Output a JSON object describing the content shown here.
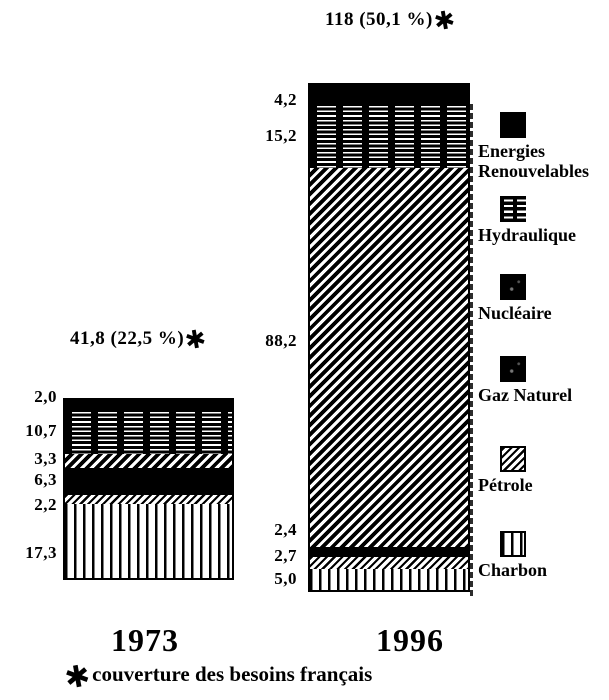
{
  "chart_data": {
    "type": "bar",
    "stacked": true,
    "title": "",
    "categories": [
      "1973",
      "1996"
    ],
    "series": [
      {
        "name": "Energies Renouvelables",
        "pattern": "solid",
        "values": [
          2.0,
          4.2
        ]
      },
      {
        "name": "Hydraulique",
        "pattern": "hdash",
        "values": [
          10.7,
          15.2
        ]
      },
      {
        "name": "Nucléaire",
        "pattern": "diag",
        "values": [
          3.3,
          88.2
        ]
      },
      {
        "name": "Gaz Naturel",
        "pattern": "solid",
        "values": [
          6.3,
          2.4
        ]
      },
      {
        "name": "Pétrole",
        "pattern": "diagf",
        "values": [
          2.2,
          2.7
        ]
      },
      {
        "name": "Charbon",
        "pattern": "vstripe",
        "values": [
          17.3,
          5.0
        ]
      }
    ],
    "totals": [
      41.8,
      118
    ],
    "total_annotations": [
      "41,8 (22,5 %)",
      "118 (50,1 %)"
    ],
    "value_labels": [
      [
        "2,0",
        "10,7",
        "3,3",
        "6,3",
        "2,2",
        "17,3"
      ],
      [
        "4,2",
        "15,2",
        "88,2",
        "2,4",
        "2,7",
        "5,0"
      ]
    ],
    "marker": "✱",
    "footnote": "couverture des besoins français",
    "legend_position": "right",
    "axes": "none",
    "colors": {
      "ink": "#000000",
      "paper": "#ffffff"
    }
  },
  "legend": {
    "items": [
      {
        "lines": [
          "Energies",
          "Renouvelables"
        ],
        "swatch": "solid"
      },
      {
        "lines": [
          "Hydraulique"
        ],
        "swatch": "hdash"
      },
      {
        "lines": [
          "Nucléaire"
        ],
        "swatch": "dark"
      },
      {
        "lines": [
          "Gaz Naturel"
        ],
        "swatch": "dark"
      },
      {
        "lines": [
          "Pétrole"
        ],
        "swatch": "diagf"
      },
      {
        "lines": [
          "Charbon"
        ],
        "swatch": "vstripe"
      }
    ]
  },
  "annotations": {
    "y1996": {
      "text": "118 (50,1 %)",
      "marker": "✱"
    },
    "y1973": {
      "text": "41,8 (22,5 %)",
      "marker": "✱"
    }
  },
  "footer": {
    "year_left": "1973",
    "year_right": "1996",
    "footnote_marker": "✱",
    "footnote_text": "couverture des besoins français"
  }
}
